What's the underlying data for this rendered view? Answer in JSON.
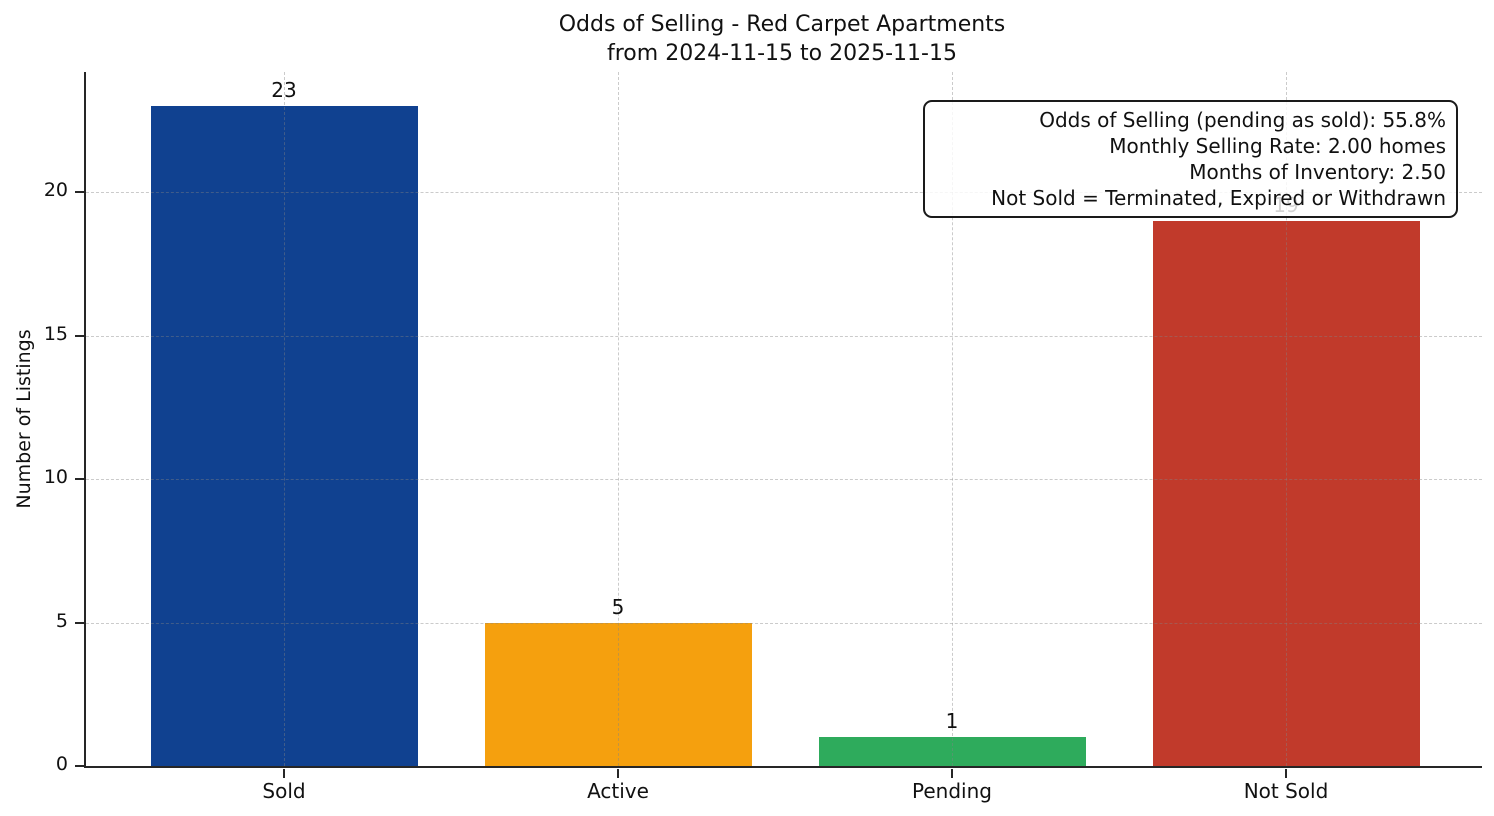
{
  "chart_data": {
    "type": "bar",
    "title": "Odds of Selling - Red Carpet Apartments",
    "subtitle": "from 2024-11-15 to 2025-11-15",
    "ylabel": "Number of Listings",
    "xlabel": "",
    "categories": [
      "Sold",
      "Active",
      "Pending",
      "Not Sold"
    ],
    "values": [
      23,
      5,
      1,
      19
    ],
    "bar_colors": [
      "#104190",
      "#f5a00e",
      "#2eab5c",
      "#c13a2b"
    ],
    "yticks": [
      0,
      5,
      10,
      15,
      20
    ],
    "ylim": [
      0,
      24.2
    ],
    "bar_width_fraction": 0.8,
    "grid": {
      "style": "dashed",
      "axes": "both",
      "above_bars": true
    },
    "axis_color": "#262626",
    "legend_position": "none",
    "annotation": {
      "lines": [
        "Odds of Selling (pending as sold): 55.8%",
        "Monthly Selling Rate: 2.00 homes",
        "Months of Inventory: 2.50",
        "Not Sold = Terminated, Expired or Withdrawn"
      ]
    }
  }
}
